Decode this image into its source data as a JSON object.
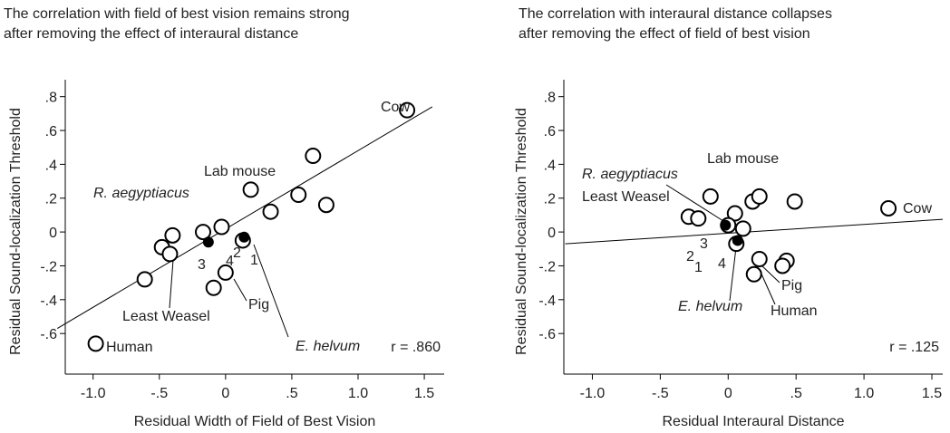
{
  "chart_data": [
    {
      "type": "scatter",
      "title": [
        "The correlation with field of best vision remains strong",
        "after removing the effect of interaural distance"
      ],
      "x_label": "Residual Width of Field of Best Vision",
      "y_label": "Residual Sound-localization Threshold",
      "xlim": [
        -1.21,
        1.65
      ],
      "ylim": [
        -0.84,
        0.9
      ],
      "xticks": [
        {
          "value": -1,
          "label": "-1.0"
        },
        {
          "value": -0.5,
          "label": "-.5"
        },
        0,
        {
          "value": 0.5,
          "label": ".5"
        },
        {
          "value": 1,
          "label": "1.0"
        },
        {
          "value": 1.5,
          "label": "1.5"
        }
      ],
      "yticks": [
        {
          "value": 0.8,
          "label": ".8"
        },
        {
          "value": 0.6,
          "label": ".6"
        },
        {
          "value": 0.4,
          "label": ".4"
        },
        {
          "value": 0.2,
          "label": ".2"
        },
        0,
        {
          "value": -0.2,
          "label": "-.2"
        },
        {
          "value": -0.4,
          "label": "-.4"
        },
        {
          "value": -0.6,
          "label": "-.6"
        }
      ],
      "series": [
        {
          "fill": "open",
          "color": "#000000",
          "x": [
            1.37,
            0.66,
            0.19,
            0.55,
            0.76,
            0.34,
            -0.03,
            -0.17,
            -0.48,
            -0.4,
            -0.42,
            -0.61,
            -0.09,
            0.0,
            0.13,
            -0.98
          ],
          "values": [
            0.72,
            0.45,
            0.25,
            0.22,
            0.16,
            0.12,
            0.03,
            0.0,
            -0.09,
            -0.02,
            -0.13,
            -0.28,
            -0.33,
            -0.24,
            -0.05,
            -0.66
          ]
        },
        {
          "fill": "filled",
          "color": "#000000",
          "x": [
            -0.13,
            0.14
          ],
          "values": [
            -0.06,
            -0.03
          ]
        }
      ],
      "fit_line": {
        "x": [
          -1.27,
          1.56
        ],
        "values": [
          -0.57,
          0.74
        ]
      },
      "annotations": [
        "Cow",
        "Lab mouse",
        "R. aegyptiacus",
        "Least Weasel",
        "Pig",
        "E. helvum",
        "Human",
        "3",
        "4",
        "2",
        "1",
        "r = .860"
      ]
    },
    {
      "type": "scatter",
      "title": [
        "The correlation with interaural distance collapses",
        "after removing the effect of field of best vision"
      ],
      "x_label": "Residual Interaural Distance",
      "y_label": "Residual Sound-localization Threshold",
      "xlim": [
        -1.21,
        1.58
      ],
      "ylim": [
        -0.84,
        0.9
      ],
      "xticks": [
        {
          "value": -1,
          "label": "-1.0"
        },
        {
          "value": -0.5,
          "label": "-.5"
        },
        0,
        {
          "value": 0.5,
          "label": ".5"
        },
        {
          "value": 1,
          "label": "1.0"
        },
        {
          "value": 1.5,
          "label": "1.5"
        }
      ],
      "yticks": [
        {
          "value": 0.8,
          "label": ".8"
        },
        {
          "value": 0.6,
          "label": ".6"
        },
        {
          "value": 0.4,
          "label": ".4"
        },
        {
          "value": 0.2,
          "label": ".2"
        },
        0,
        {
          "value": -0.2,
          "label": "-.2"
        },
        {
          "value": -0.4,
          "label": "-.4"
        },
        {
          "value": -0.6,
          "label": "-.6"
        }
      ],
      "series": [
        {
          "fill": "open",
          "color": "#000000",
          "x": [
            1.18,
            -0.13,
            0.18,
            0.23,
            0.49,
            0.05,
            -0.29,
            -0.22,
            0.0,
            0.11,
            0.06,
            0.23,
            0.43,
            0.4,
            0.19
          ],
          "values": [
            0.14,
            0.21,
            0.18,
            0.21,
            0.18,
            0.11,
            0.09,
            0.08,
            0.04,
            0.02,
            -0.07,
            -0.16,
            -0.17,
            -0.2,
            -0.25
          ]
        },
        {
          "fill": "filled",
          "color": "#000000",
          "x": [
            -0.02,
            0.07
          ],
          "values": [
            0.04,
            -0.05
          ]
        }
      ],
      "fit_line": {
        "x": [
          -1.2,
          1.58
        ],
        "values": [
          -0.07,
          0.075
        ]
      },
      "annotations": [
        "Cow",
        "Lab mouse",
        "R. aegyptiacus",
        "Least Weasel",
        "Pig",
        "Human",
        "E. helvum",
        "2",
        "3",
        "1",
        "4",
        "r = .125"
      ]
    }
  ]
}
